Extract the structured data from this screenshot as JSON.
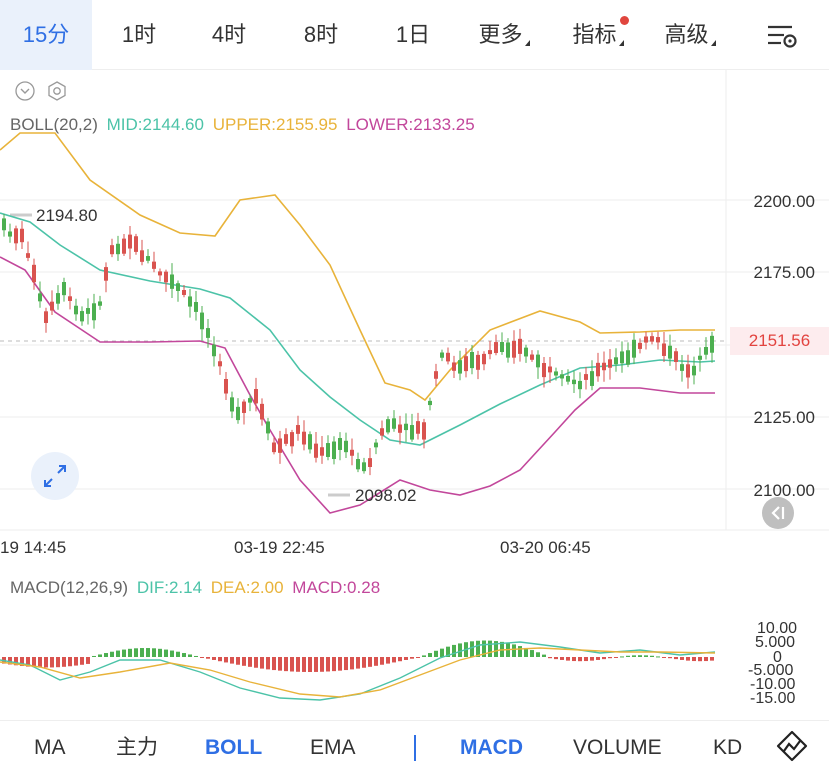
{
  "toolbar": {
    "timeframes": [
      "15分",
      "1时",
      "4时",
      "8时",
      "1日"
    ],
    "more": "更多",
    "indicators": "指标",
    "advanced": "高级"
  },
  "legend": {
    "boll_name": "BOLL(20,2)",
    "mid": "MID:2144.60",
    "upper": "UPPER:2155.95",
    "lower": "LOWER:2133.25",
    "macd_name": "MACD(12,26,9)",
    "dif": "DIF:2.14",
    "dea": "DEA:2.00",
    "macd": "MACD:0.28"
  },
  "price_axis": [
    "2200.00",
    "2175.00",
    "2125.00",
    "2100.00"
  ],
  "last_price": "2151.56",
  "high_label": "2194.80",
  "low_label": "2098.02",
  "time_axis": [
    "19 14:45",
    "03-19 22:45",
    "03-20 06:45"
  ],
  "macd_axis": [
    "10.00",
    "5.000",
    "0",
    "-5.000",
    "-10.00",
    "-15.00"
  ],
  "bottom_indicators": {
    "ma": "MA",
    "main": "主力",
    "boll": "BOLL",
    "ema": "EMA",
    "macd": "MACD",
    "volume": "VOLUME",
    "kd": "KD"
  },
  "colors": {
    "up": "#4caf50",
    "down": "#d9534f",
    "mid": "#4cc3a8",
    "upper": "#e8b33a",
    "lower": "#c2479b",
    "accent": "#2f6fe4"
  }
}
